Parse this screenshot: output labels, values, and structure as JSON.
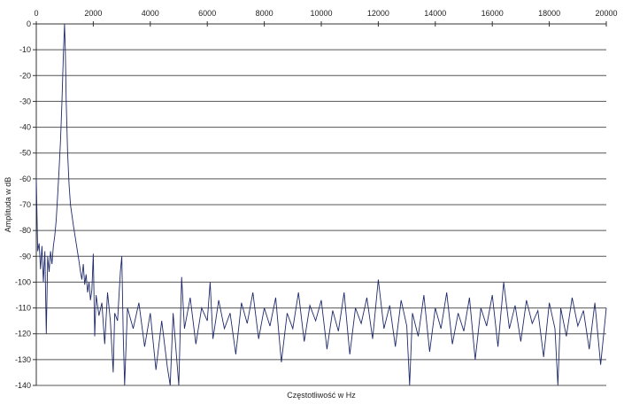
{
  "chart_data": {
    "type": "line",
    "title": "",
    "xlabel": "Częstotliwość w Hz",
    "ylabel": "Amplituda w dB",
    "xlim": [
      0,
      20000
    ],
    "ylim": [
      -140,
      0
    ],
    "x_axis_position": "top",
    "xticks": [
      0,
      2000,
      4000,
      6000,
      8000,
      10000,
      12000,
      14000,
      16000,
      18000,
      20000
    ],
    "yticks": [
      0,
      -10,
      -20,
      -30,
      -40,
      -50,
      -60,
      -70,
      -80,
      -90,
      -100,
      -110,
      -120,
      -130,
      -140
    ],
    "grid": "horizontal",
    "legend": "none",
    "series_color": "#1f2a6b",
    "points": [
      [
        0,
        -60
      ],
      [
        50,
        -88
      ],
      [
        100,
        -85
      ],
      [
        150,
        -95
      ],
      [
        200,
        -86
      ],
      [
        250,
        -100
      ],
      [
        300,
        -88
      ],
      [
        350,
        -120
      ],
      [
        400,
        -90
      ],
      [
        450,
        -96
      ],
      [
        500,
        -88
      ],
      [
        550,
        -93
      ],
      [
        600,
        -86
      ],
      [
        650,
        -82
      ],
      [
        700,
        -76
      ],
      [
        750,
        -66
      ],
      [
        800,
        -56
      ],
      [
        850,
        -45
      ],
      [
        900,
        -30
      ],
      [
        950,
        -12
      ],
      [
        990,
        0
      ],
      [
        1020,
        -10
      ],
      [
        1050,
        -30
      ],
      [
        1100,
        -50
      ],
      [
        1150,
        -62
      ],
      [
        1200,
        -70
      ],
      [
        1300,
        -78
      ],
      [
        1400,
        -85
      ],
      [
        1500,
        -92
      ],
      [
        1550,
        -96
      ],
      [
        1600,
        -99
      ],
      [
        1650,
        -93
      ],
      [
        1700,
        -101
      ],
      [
        1750,
        -97
      ],
      [
        1800,
        -104
      ],
      [
        1850,
        -100
      ],
      [
        1900,
        -107
      ],
      [
        1950,
        -103
      ],
      [
        2000,
        -89
      ],
      [
        2050,
        -121
      ],
      [
        2100,
        -105
      ],
      [
        2200,
        -113
      ],
      [
        2300,
        -108
      ],
      [
        2400,
        -124
      ],
      [
        2500,
        -104
      ],
      [
        2600,
        -115
      ],
      [
        2700,
        -135
      ],
      [
        2750,
        -112
      ],
      [
        2850,
        -115
      ],
      [
        2950,
        -96
      ],
      [
        3000,
        -90
      ],
      [
        3050,
        -120
      ],
      [
        3100,
        -140
      ],
      [
        3200,
        -110
      ],
      [
        3400,
        -118
      ],
      [
        3600,
        -108
      ],
      [
        3800,
        -125
      ],
      [
        4000,
        -112
      ],
      [
        4200,
        -134
      ],
      [
        4400,
        -115
      ],
      [
        4600,
        -133
      ],
      [
        4700,
        -140
      ],
      [
        4800,
        -112
      ],
      [
        5000,
        -140
      ],
      [
        5100,
        -98
      ],
      [
        5200,
        -118
      ],
      [
        5400,
        -106
      ],
      [
        5600,
        -124
      ],
      [
        5800,
        -110
      ],
      [
        6000,
        -115
      ],
      [
        6100,
        -100
      ],
      [
        6200,
        -122
      ],
      [
        6400,
        -107
      ],
      [
        6600,
        -118
      ],
      [
        6800,
        -112
      ],
      [
        7000,
        -128
      ],
      [
        7200,
        -108
      ],
      [
        7400,
        -116
      ],
      [
        7600,
        -104
      ],
      [
        7800,
        -122
      ],
      [
        8000,
        -110
      ],
      [
        8200,
        -117
      ],
      [
        8400,
        -106
      ],
      [
        8600,
        -131
      ],
      [
        8800,
        -112
      ],
      [
        9000,
        -118
      ],
      [
        9200,
        -104
      ],
      [
        9400,
        -123
      ],
      [
        9600,
        -109
      ],
      [
        9800,
        -115
      ],
      [
        10000,
        -107
      ],
      [
        10200,
        -126
      ],
      [
        10400,
        -111
      ],
      [
        10600,
        -119
      ],
      [
        10800,
        -104
      ],
      [
        11000,
        -128
      ],
      [
        11200,
        -110
      ],
      [
        11400,
        -116
      ],
      [
        11600,
        -106
      ],
      [
        11800,
        -122
      ],
      [
        12000,
        -99
      ],
      [
        12200,
        -118
      ],
      [
        12400,
        -109
      ],
      [
        12600,
        -125
      ],
      [
        12800,
        -107
      ],
      [
        13000,
        -117
      ],
      [
        13100,
        -140
      ],
      [
        13200,
        -112
      ],
      [
        13400,
        -121
      ],
      [
        13600,
        -105
      ],
      [
        13800,
        -127
      ],
      [
        14000,
        -110
      ],
      [
        14200,
        -118
      ],
      [
        14400,
        -104
      ],
      [
        14600,
        -124
      ],
      [
        14800,
        -112
      ],
      [
        15000,
        -119
      ],
      [
        15200,
        -106
      ],
      [
        15400,
        -130
      ],
      [
        15600,
        -110
      ],
      [
        15800,
        -117
      ],
      [
        16000,
        -105
      ],
      [
        16200,
        -125
      ],
      [
        16400,
        -100
      ],
      [
        16600,
        -118
      ],
      [
        16800,
        -109
      ],
      [
        17000,
        -123
      ],
      [
        17200,
        -107
      ],
      [
        17400,
        -116
      ],
      [
        17600,
        -111
      ],
      [
        17800,
        -129
      ],
      [
        18000,
        -108
      ],
      [
        18200,
        -118
      ],
      [
        18300,
        -140
      ],
      [
        18400,
        -110
      ],
      [
        18600,
        -121
      ],
      [
        18800,
        -106
      ],
      [
        19000,
        -117
      ],
      [
        19200,
        -111
      ],
      [
        19400,
        -126
      ],
      [
        19600,
        -108
      ],
      [
        19800,
        -132
      ],
      [
        20000,
        -110
      ]
    ]
  }
}
